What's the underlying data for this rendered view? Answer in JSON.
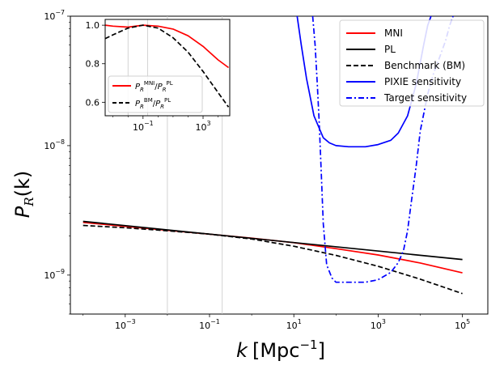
{
  "chart_data": [
    {
      "type": "line",
      "scale": {
        "x": "log",
        "y": "log"
      },
      "xlabel_base": "k",
      "xlabel_unit": "[Mpc",
      "xlabel_exp": "−1",
      "xlabel_close": "]",
      "ylabel_main": "P",
      "ylabel_sub": "R",
      "ylabel_arg": "(k)",
      "xlim": [
        5e-05,
        400000
      ],
      "ylim": [
        5e-10,
        1e-07
      ],
      "x_ticks": [
        {
          "value": 0.001,
          "base": "10",
          "exp": "−3"
        },
        {
          "value": 0.1,
          "base": "10",
          "exp": "−1"
        },
        {
          "value": 10,
          "base": "10",
          "exp": "1"
        },
        {
          "value": 1000,
          "base": "10",
          "exp": "3"
        },
        {
          "value": 100000,
          "base": "10",
          "exp": "5"
        }
      ],
      "y_ticks": [
        {
          "value": 1e-09,
          "base": "10",
          "exp": "−9"
        },
        {
          "value": 1e-08,
          "base": "10",
          "exp": "−8"
        },
        {
          "value": 1e-07,
          "base": "10",
          "exp": "−7"
        }
      ],
      "vlines": [
        0.01,
        0.2
      ],
      "series": [
        {
          "name": "MNI",
          "color": "#ff0000",
          "style": "solid",
          "x": [
            0.0001,
            0.001,
            0.01,
            0.1,
            1,
            10,
            100,
            1000,
            10000,
            100000
          ],
          "y": [
            2.55e-09,
            2.38e-09,
            2.22e-09,
            2.07e-09,
            1.93e-09,
            1.78e-09,
            1.6e-09,
            1.43e-09,
            1.24e-09,
            1.04e-09
          ]
        },
        {
          "name": "PL",
          "color": "#000000",
          "style": "solid",
          "x": [
            0.0001,
            100000
          ],
          "y": [
            2.6e-09,
            1.32e-09
          ]
        },
        {
          "name": "Benchmark (BM)",
          "color": "#000000",
          "style": "dashed",
          "x": [
            0.0001,
            0.001,
            0.01,
            0.1,
            1,
            10,
            100,
            1000,
            10000,
            100000
          ],
          "y": [
            2.42e-09,
            2.32e-09,
            2.2e-09,
            2.07e-09,
            1.9e-09,
            1.67e-09,
            1.42e-09,
            1.17e-09,
            9.3e-10,
            7.2e-10
          ]
        },
        {
          "name": "PIXIE sensitivity",
          "color": "#0000ff",
          "style": "solid",
          "x": [
            12,
            15,
            20,
            30,
            50,
            70,
            100,
            200,
            500,
            1000,
            2000,
            3000,
            5000,
            8000,
            12000,
            15000,
            18000
          ],
          "y": [
            1.1e-07,
            6e-08,
            3.3e-08,
            1.7e-08,
            1.15e-08,
            1.05e-08,
            1e-08,
            9.8e-09,
            9.8e-09,
            1.02e-08,
            1.1e-08,
            1.25e-08,
            1.7e-08,
            3e-08,
            6e-08,
            8.5e-08,
            1.1e-07
          ]
        },
        {
          "name": "Target sensitivity",
          "color": "#0000ff",
          "style": "dashdot",
          "x": [
            28,
            32,
            36,
            40,
            45,
            50,
            60,
            80,
            100,
            200,
            500,
            1000,
            2000,
            3000,
            4000,
            5000,
            6000,
            8000,
            10000,
            15000,
            20000,
            30000,
            40000,
            50000,
            60000
          ],
          "y": [
            1.1e-07,
            6e-08,
            3e-08,
            1.5e-08,
            6e-09,
            2.5e-09,
            1.2e-09,
            9.5e-10,
            8.8e-10,
            8.8e-10,
            8.8e-10,
            9.2e-10,
            1.05e-09,
            1.25e-09,
            1.55e-09,
            2.2e-09,
            3.5e-09,
            7e-09,
            1.3e-08,
            2.5e-08,
            3.5e-08,
            5e-08,
            6.5e-08,
            8.5e-08,
            1.1e-07
          ]
        }
      ],
      "legend": {
        "placement": "top-right"
      }
    },
    {
      "type": "line",
      "scale": {
        "x": "log",
        "y": "linear"
      },
      "xlim": [
        0.0003,
        60000
      ],
      "ylim": [
        0.53,
        1.03
      ],
      "x_ticks": [
        {
          "value": 0.1,
          "base": "10",
          "exp": "−1"
        },
        {
          "value": 1000,
          "base": "10",
          "exp": "3"
        }
      ],
      "y_ticks": [
        {
          "value": 0.6,
          "label": "0.6"
        },
        {
          "value": 0.8,
          "label": "0.8"
        },
        {
          "value": 1.0,
          "label": "1.0"
        }
      ],
      "vlines": [
        0.01,
        0.2
      ],
      "series": [
        {
          "name_main": "P",
          "name_sub": "R",
          "name_sup": "MNI",
          "name_slash": "/",
          "name_main2": "P",
          "name_sub2": "R",
          "name_sup2": "PL",
          "color": "#ff0000",
          "style": "solid",
          "x": [
            0.0003,
            0.001,
            0.01,
            0.1,
            1,
            10,
            100,
            1000,
            10000,
            50000
          ],
          "y": [
            1.0,
            0.995,
            0.99,
            1.0,
            0.995,
            0.98,
            0.945,
            0.89,
            0.82,
            0.78
          ]
        },
        {
          "name_main": "P",
          "name_sub": "R",
          "name_sup": "BM",
          "name_slash": "/",
          "name_main2": "P",
          "name_sub2": "R",
          "name_sup2": "PL",
          "color": "#000000",
          "style": "dashed",
          "x": [
            0.0003,
            0.001,
            0.01,
            0.1,
            1,
            10,
            100,
            1000,
            10000,
            50000
          ],
          "y": [
            0.93,
            0.95,
            0.985,
            1.0,
            0.985,
            0.935,
            0.86,
            0.76,
            0.65,
            0.575
          ]
        }
      ],
      "legend": {
        "placement": "bottom-left"
      }
    }
  ]
}
